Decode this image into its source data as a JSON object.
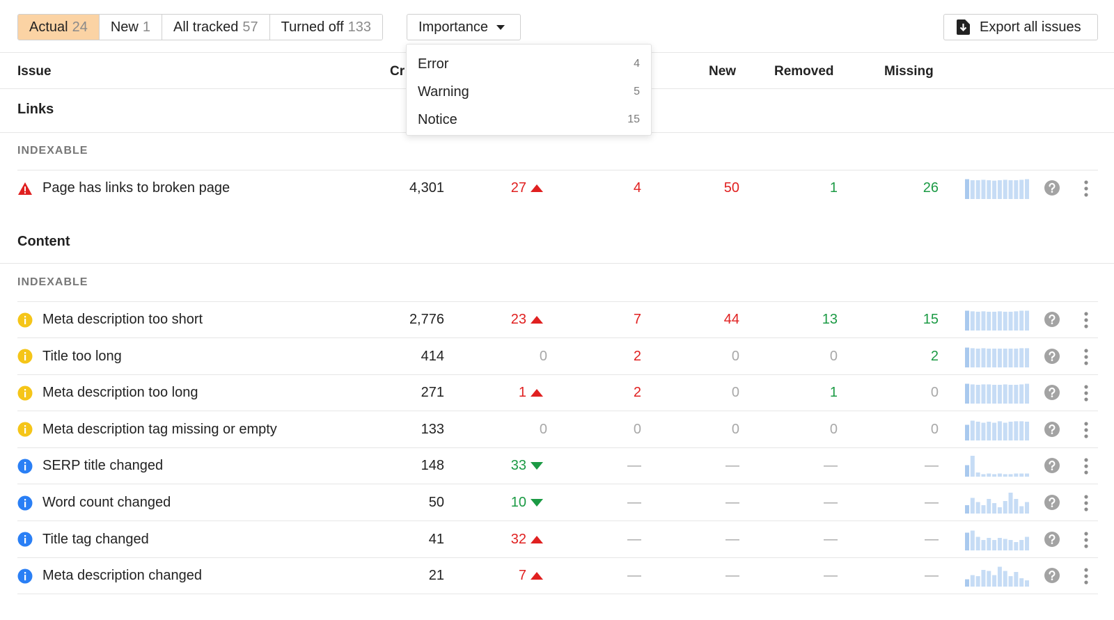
{
  "tabs": [
    {
      "label": "Actual",
      "count": "24",
      "active": true
    },
    {
      "label": "New",
      "count": "1",
      "active": false
    },
    {
      "label": "All tracked",
      "count": "57",
      "active": false
    },
    {
      "label": "Turned off",
      "count": "133",
      "active": false
    }
  ],
  "importance": {
    "label": "Importance"
  },
  "export": {
    "label": "Export all issues"
  },
  "dropdown": [
    {
      "label": "Error",
      "count": "4"
    },
    {
      "label": "Warning",
      "count": "5"
    },
    {
      "label": "Notice",
      "count": "15"
    }
  ],
  "columns": {
    "issue": "Issue",
    "crawled": "Cr",
    "new": "New",
    "removed": "Removed",
    "missing": "Missing"
  },
  "sections": [
    {
      "title": "Links",
      "subhead": "INDEXABLE",
      "rows": [
        {
          "icon": "error-icon",
          "name": "Page has links to broken page",
          "crawled": "4,301",
          "change": "27",
          "change_dir": "up",
          "change_color": "red",
          "added": "4",
          "added_color": "red",
          "new": "50",
          "new_color": "red",
          "removed": "1",
          "removed_color": "green",
          "missing": "26",
          "missing_color": "green",
          "spark": [
            0.95,
            0.9,
            0.9,
            0.92,
            0.9,
            0.88,
            0.9,
            0.92,
            0.9,
            0.9,
            0.92,
            0.95
          ]
        }
      ]
    },
    {
      "title": "Content",
      "subhead": "INDEXABLE",
      "rows": [
        {
          "icon": "warning-icon",
          "name": "Meta description too short",
          "crawled": "2,776",
          "change": "23",
          "change_dir": "up",
          "change_color": "red",
          "added": "7",
          "added_color": "red",
          "new": "44",
          "new_color": "red",
          "removed": "13",
          "removed_color": "green",
          "missing": "15",
          "missing_color": "green",
          "spark": [
            0.95,
            0.92,
            0.9,
            0.92,
            0.9,
            0.9,
            0.92,
            0.9,
            0.9,
            0.92,
            0.95,
            0.95
          ]
        },
        {
          "icon": "warning-icon",
          "name": "Title too long",
          "crawled": "414",
          "change": "0",
          "change_dir": "",
          "change_color": "gray",
          "added": "2",
          "added_color": "red",
          "new": "0",
          "new_color": "gray",
          "removed": "0",
          "removed_color": "gray",
          "missing": "2",
          "missing_color": "green",
          "spark": [
            0.95,
            0.92,
            0.9,
            0.92,
            0.9,
            0.9,
            0.9,
            0.9,
            0.9,
            0.9,
            0.92,
            0.92
          ]
        },
        {
          "icon": "warning-icon",
          "name": "Meta description too long",
          "crawled": "271",
          "change": "1",
          "change_dir": "up",
          "change_color": "red",
          "added": "2",
          "added_color": "red",
          "new": "0",
          "new_color": "gray",
          "removed": "1",
          "removed_color": "green",
          "missing": "0",
          "missing_color": "gray",
          "spark": [
            0.95,
            0.92,
            0.9,
            0.92,
            0.92,
            0.9,
            0.9,
            0.92,
            0.9,
            0.9,
            0.92,
            0.95
          ]
        },
        {
          "icon": "warning-icon",
          "name": "Meta description tag missing or empty",
          "crawled": "133",
          "change": "0",
          "change_dir": "",
          "change_color": "gray",
          "added": "0",
          "added_color": "gray",
          "new": "0",
          "new_color": "gray",
          "removed": "0",
          "removed_color": "gray",
          "missing": "0",
          "missing_color": "gray",
          "spark": [
            0.75,
            0.95,
            0.9,
            0.85,
            0.9,
            0.85,
            0.92,
            0.85,
            0.9,
            0.92,
            0.92,
            0.9
          ]
        },
        {
          "icon": "info-icon",
          "name": "SERP title changed",
          "crawled": "148",
          "change": "33",
          "change_dir": "down",
          "change_color": "green",
          "added": "—",
          "added_color": "dash",
          "new": "—",
          "new_color": "dash",
          "removed": "—",
          "removed_color": "dash",
          "missing": "—",
          "missing_color": "dash",
          "spark": [
            0.55,
            1.0,
            0.2,
            0.12,
            0.15,
            0.12,
            0.15,
            0.12,
            0.12,
            0.15,
            0.15,
            0.15
          ]
        },
        {
          "icon": "info-icon",
          "name": "Word count changed",
          "crawled": "50",
          "change": "10",
          "change_dir": "down",
          "change_color": "green",
          "added": "—",
          "added_color": "dash",
          "new": "—",
          "new_color": "dash",
          "removed": "—",
          "removed_color": "dash",
          "missing": "—",
          "missing_color": "dash",
          "spark": [
            0.4,
            0.75,
            0.55,
            0.4,
            0.7,
            0.5,
            0.3,
            0.6,
            1.0,
            0.7,
            0.35,
            0.55
          ]
        },
        {
          "icon": "info-icon",
          "name": "Title tag changed",
          "crawled": "41",
          "change": "32",
          "change_dir": "up",
          "change_color": "red",
          "added": "—",
          "added_color": "dash",
          "new": "—",
          "new_color": "dash",
          "removed": "—",
          "removed_color": "dash",
          "missing": "—",
          "missing_color": "dash",
          "spark": [
            0.85,
            0.95,
            0.65,
            0.5,
            0.6,
            0.5,
            0.6,
            0.55,
            0.5,
            0.4,
            0.5,
            0.65
          ]
        },
        {
          "icon": "info-icon",
          "name": "Meta description changed",
          "crawled": "21",
          "change": "7",
          "change_dir": "up",
          "change_color": "red",
          "added": "—",
          "added_color": "dash",
          "new": "—",
          "new_color": "dash",
          "removed": "—",
          "removed_color": "dash",
          "missing": "—",
          "missing_color": "dash",
          "spark": [
            0.35,
            0.55,
            0.5,
            0.8,
            0.75,
            0.55,
            0.95,
            0.75,
            0.5,
            0.7,
            0.4,
            0.3
          ]
        }
      ]
    }
  ],
  "colors": {
    "error": "#e02020",
    "warning": "#f5c518",
    "info": "#2a7ff5",
    "spark": "#c6dcf5",
    "spark_first": "#a9c9ee",
    "accent_tab": "#fbd3a4"
  }
}
